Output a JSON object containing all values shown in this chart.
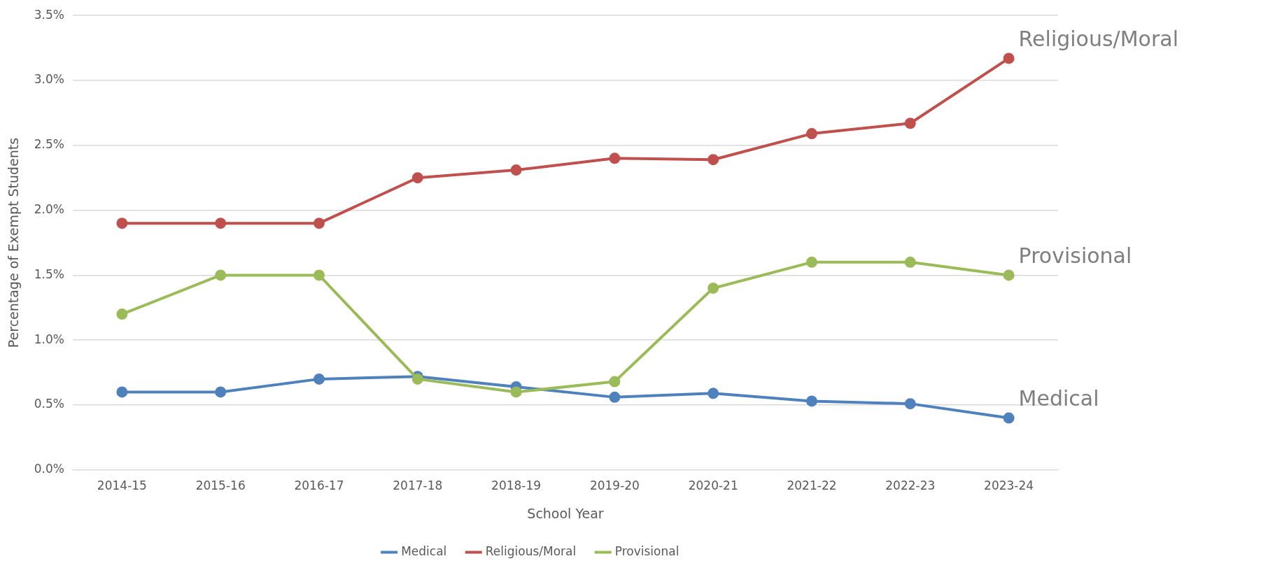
{
  "chart_data": {
    "type": "line",
    "xlabel": "School Year",
    "ylabel": "Percentage of Exempt Students",
    "categories": [
      "2014-15",
      "2015-16",
      "2016-17",
      "2017-18",
      "2018-19",
      "2019-20",
      "2020-21",
      "2021-22",
      "2022-23",
      "2023-24"
    ],
    "series": [
      {
        "name": "Medical",
        "color": "#4f81bd",
        "values": [
          0.6,
          0.6,
          0.7,
          0.72,
          0.64,
          0.56,
          0.59,
          0.53,
          0.51,
          0.4
        ]
      },
      {
        "name": "Religious/Moral",
        "color": "#c0504d",
        "values": [
          1.9,
          1.9,
          1.9,
          2.25,
          2.31,
          2.4,
          2.39,
          2.59,
          2.67,
          3.17
        ]
      },
      {
        "name": "Provisional",
        "color": "#9bbb59",
        "values": [
          1.2,
          1.5,
          1.5,
          0.7,
          0.6,
          0.68,
          1.4,
          1.6,
          1.6,
          1.5
        ]
      }
    ],
    "ylim": [
      0,
      3.5
    ],
    "yticks": [
      {
        "value": 0,
        "label": "0.0%"
      },
      {
        "value": 0.5,
        "label": "0.5%"
      },
      {
        "value": 1,
        "label": "1.0%"
      },
      {
        "value": 1.5,
        "label": "1.5%"
      },
      {
        "value": 2,
        "label": "2.0%"
      },
      {
        "value": 2.5,
        "label": "2.5%"
      },
      {
        "value": 3,
        "label": "3.0%"
      },
      {
        "value": 3.5,
        "label": "3.5%"
      }
    ],
    "annotations": [
      {
        "text": "Religious/Moral",
        "x": "2023-24",
        "y": 3.17
      },
      {
        "text": "Provisional",
        "x": "2023-24",
        "y": 1.5
      },
      {
        "text": "Medical",
        "x": "2023-24",
        "y": 0.4
      }
    ],
    "grid": "y",
    "legend": "bottom",
    "marker": "circle",
    "line_style": "solid"
  }
}
